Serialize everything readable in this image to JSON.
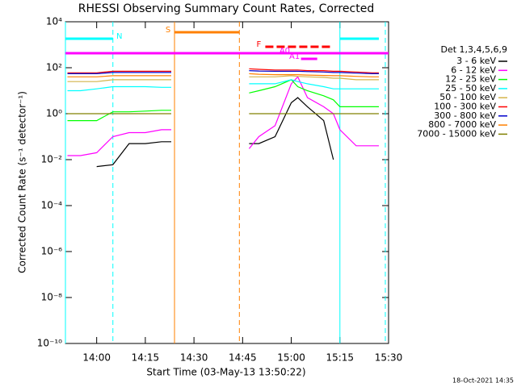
{
  "chart_data": {
    "type": "line",
    "title": "RHESSI Observing Summary Count Rates, Corrected",
    "x_label": "Start Time (03-May-13 13:50:22)",
    "y_label": "Corrected Count Rate (s⁻¹ detector⁻¹)",
    "timestamp": "18-Oct-2021 14:35",
    "legend_title": "Det 1,3,4,5,6,9",
    "log_y": true,
    "xlim": [
      "13:50:22",
      "15:30"
    ],
    "xticks": [
      "14:00",
      "14:15",
      "14:30",
      "14:45",
      "15:00",
      "15:15",
      "15:30"
    ],
    "ylim": [
      1e-10,
      10000
    ],
    "yticks": [
      {
        "value": 1e-10,
        "label": "10⁻¹⁰"
      },
      {
        "value": 1e-08,
        "label": "10⁻⁸"
      },
      {
        "value": 1e-06,
        "label": "10⁻⁶"
      },
      {
        "value": 0.0001,
        "label": "10⁻⁴"
      },
      {
        "value": 0.01,
        "label": "10⁻²"
      },
      {
        "value": 1,
        "label": "10⁰"
      },
      {
        "value": 100,
        "label": "10²"
      },
      {
        "value": 10000,
        "label": "10⁴"
      }
    ],
    "x": [
      "13:51",
      "13:55",
      "14:00",
      "14:05",
      "14:10",
      "14:15",
      "14:20",
      "14:23",
      "14:35",
      "14:47",
      "14:50",
      "14:55",
      "15:00",
      "15:02",
      "15:05",
      "15:10",
      "15:13",
      "15:15",
      "15:20",
      "15:25",
      "15:27"
    ],
    "series": [
      {
        "name": "3 - 6 keV",
        "color": "#000000",
        "values": [
          null,
          null,
          0.005,
          0.006,
          0.05,
          0.05,
          0.06,
          0.06,
          null,
          0.05,
          0.05,
          0.1,
          3,
          5,
          2,
          0.5,
          0.01,
          null,
          null,
          null,
          null
        ]
      },
      {
        "name": "6 - 12 keV",
        "color": "#ff00ff",
        "values": [
          0.015,
          0.015,
          0.02,
          0.1,
          0.15,
          0.15,
          0.2,
          0.2,
          null,
          0.03,
          0.1,
          0.3,
          20,
          40,
          5,
          2,
          1,
          0.2,
          0.04,
          0.04,
          0.04
        ]
      },
      {
        "name": "12 - 25 keV",
        "color": "#00ff00",
        "values": [
          0.5,
          0.5,
          0.5,
          1.2,
          1.2,
          1.3,
          1.4,
          1.4,
          null,
          8,
          10,
          15,
          30,
          15,
          10,
          6,
          4,
          2,
          2,
          2,
          2
        ]
      },
      {
        "name": "25 - 50 keV",
        "color": "#00ffff",
        "values": [
          10,
          10,
          12,
          15,
          15,
          15,
          14,
          14,
          null,
          20,
          20,
          20,
          30,
          25,
          20,
          15,
          12,
          12,
          12,
          12,
          12
        ]
      },
      {
        "name": "50 - 100 keV",
        "color": "#d4b44a",
        "values": [
          25,
          25,
          25,
          30,
          30,
          30,
          30,
          30,
          null,
          40,
          40,
          40,
          45,
          42,
          40,
          38,
          35,
          35,
          30,
          30,
          30
        ]
      },
      {
        "name": "100 - 300 keV",
        "color": "#ff0000",
        "values": [
          60,
          60,
          60,
          70,
          70,
          70,
          70,
          70,
          null,
          90,
          85,
          80,
          80,
          80,
          75,
          75,
          70,
          70,
          65,
          60,
          60
        ]
      },
      {
        "name": "300 - 800 keV",
        "color": "#0000cc",
        "values": [
          55,
          55,
          55,
          62,
          62,
          62,
          62,
          62,
          null,
          75,
          72,
          70,
          70,
          70,
          68,
          65,
          62,
          62,
          58,
          55,
          55
        ]
      },
      {
        "name": "800 - 7000 keV",
        "color": "#ff8000",
        "values": [
          40,
          40,
          40,
          45,
          45,
          45,
          45,
          45,
          null,
          55,
          52,
          50,
          50,
          50,
          48,
          46,
          45,
          45,
          42,
          40,
          40
        ]
      },
      {
        "name": "7000 - 15000 keV",
        "color": "#808000",
        "values": [
          1,
          1,
          1,
          1,
          1,
          1,
          1,
          1,
          null,
          1,
          1,
          1,
          1,
          1,
          1,
          1,
          1,
          1,
          1,
          1,
          1
        ]
      }
    ],
    "annotations": [
      {
        "label": "N",
        "start": "13:50:22",
        "end": "14:05",
        "color": "#00ffff"
      },
      {
        "start": "15:15",
        "end": "15:27",
        "color": "#00ffff"
      },
      {
        "label": "S",
        "start": "14:24",
        "end": "14:44",
        "color": "#ff8000"
      },
      {
        "start": "13:50:22",
        "end": "15:30",
        "color": "#ff00ff"
      },
      {
        "label": "F",
        "start": "14:52",
        "end": "15:12",
        "color": "#ff0000"
      },
      {
        "label": "A0",
        "start": "14:53",
        "end": "15:06",
        "color": "#ff00ff"
      },
      {
        "label": "A1",
        "start": "15:03",
        "end": "15:08",
        "color": "#ff00ff"
      }
    ],
    "markers": [
      {
        "x": "13:50:22",
        "color": "#00ffff",
        "dashed": false
      },
      {
        "x": "14:05",
        "color": "#00ffff",
        "dashed": true
      },
      {
        "x": "14:24",
        "color": "#ff8000",
        "dashed": false
      },
      {
        "x": "14:44",
        "color": "#ff8000",
        "dashed": true
      },
      {
        "x": "15:15",
        "color": "#00ffff",
        "dashed": false
      },
      {
        "x": "15:29",
        "color": "#00ffff",
        "dashed": true
      }
    ]
  }
}
